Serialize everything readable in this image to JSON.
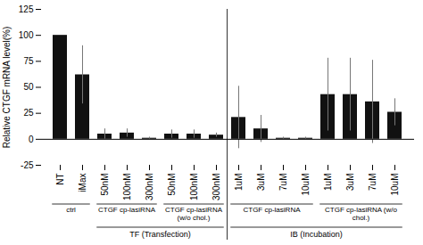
{
  "chart_data": {
    "type": "bar",
    "categories": [
      "NT",
      "iMax",
      "50nM",
      "100nM",
      "300nM",
      "50nM",
      "100nM",
      "300nM",
      "1uM",
      "3uM",
      "7uM",
      "10uM",
      "1uM",
      "3uM",
      "7uM",
      "10uM"
    ],
    "values": [
      100,
      62,
      5,
      6,
      1,
      5,
      5,
      4,
      21,
      10,
      1,
      1,
      43,
      43,
      36,
      26
    ],
    "errors": [
      0,
      28,
      5,
      4,
      1,
      4,
      4,
      2,
      30,
      13,
      1,
      1,
      35,
      35,
      40,
      13
    ],
    "color": "#111111",
    "ylabel": "Relative CTGF mRNA level(%)",
    "ylim": [
      -25,
      125
    ],
    "yticks": [
      -25,
      0,
      25,
      50,
      75,
      100,
      125
    ],
    "grid": false,
    "groups": [
      {
        "text": "ctrl",
        "span": [
          0,
          1
        ]
      },
      {
        "text": "CTGF cp-lasiRNA",
        "span": [
          2,
          4
        ]
      },
      {
        "text": "CTGF cp-lasiRNA\n(w/o chol.)",
        "span": [
          5,
          7
        ]
      },
      {
        "text": "CTGF cp-lasiRNA",
        "span": [
          8,
          11
        ]
      },
      {
        "text": "CTGF cp-lasiRNA (w/o\nchol.)",
        "span": [
          12,
          15
        ]
      }
    ],
    "sections": [
      {
        "text": "TF (Transfection)",
        "span": [
          2,
          7
        ]
      },
      {
        "text": "IB (Incubation)",
        "span": [
          8,
          15
        ]
      }
    ]
  }
}
